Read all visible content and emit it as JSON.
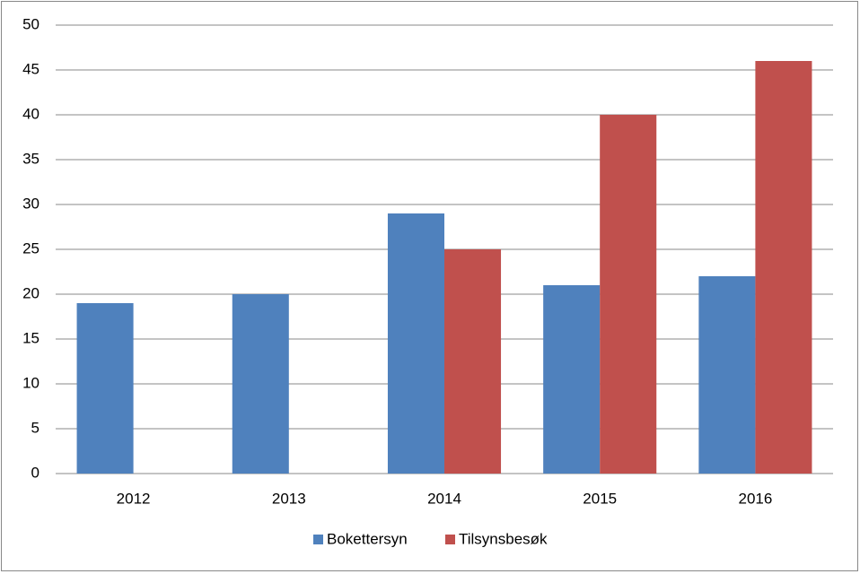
{
  "chart_data": {
    "type": "bar",
    "categories": [
      "2012",
      "2013",
      "2014",
      "2015",
      "2016"
    ],
    "series": [
      {
        "name": "Bokettersyn",
        "color": "#4f81bd",
        "values": [
          19,
          20,
          29,
          21,
          22
        ]
      },
      {
        "name": "Tilsynsbesøk",
        "color": "#c0504d",
        "values": [
          null,
          null,
          25,
          40,
          46
        ]
      }
    ],
    "ylim": [
      0,
      50
    ],
    "yticks": [
      0,
      5,
      10,
      15,
      20,
      25,
      30,
      35,
      40,
      45,
      50
    ],
    "grid": true,
    "legend": "bottom"
  }
}
